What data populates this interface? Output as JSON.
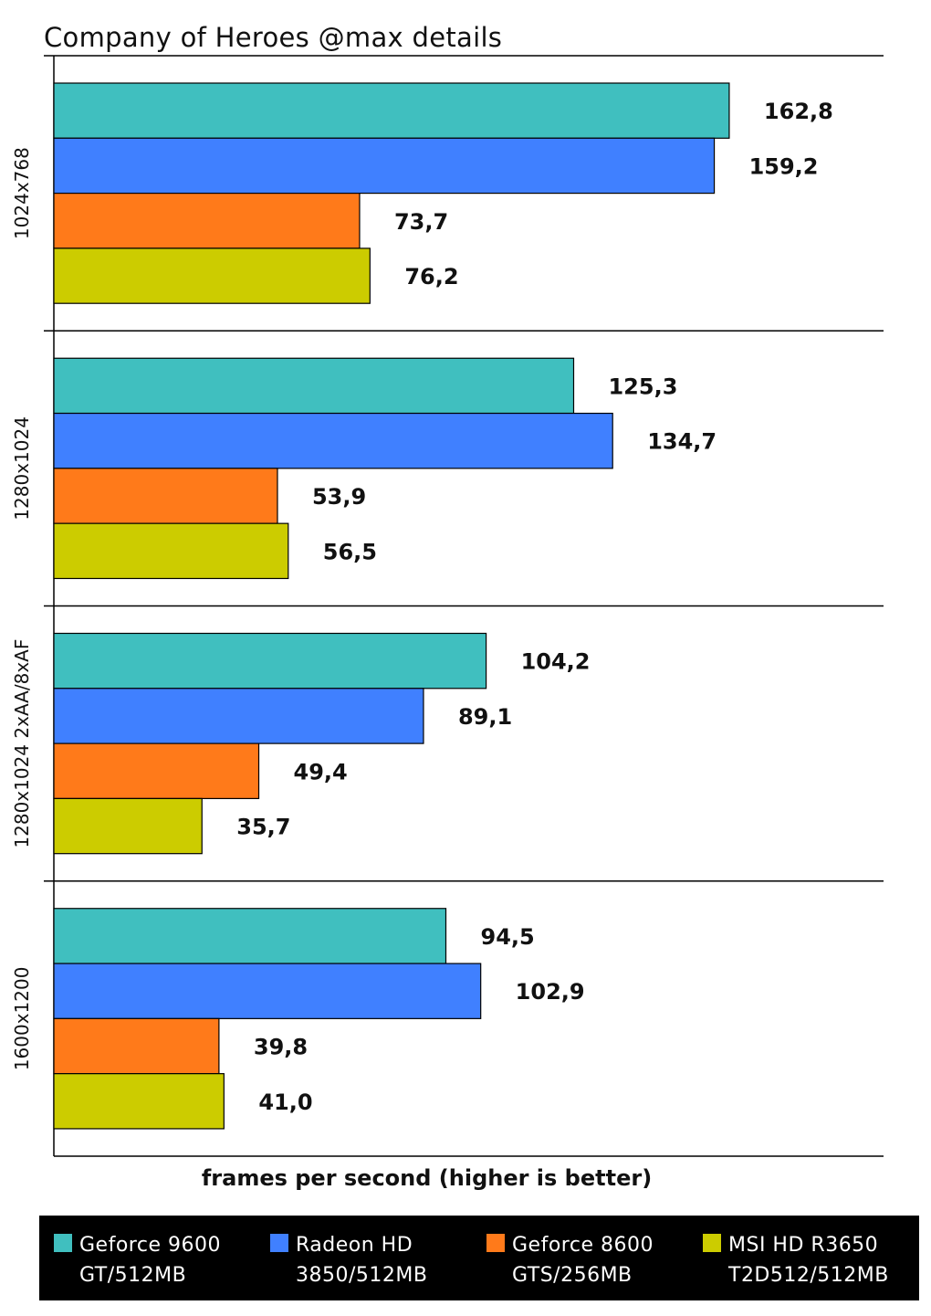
{
  "chart_data": {
    "type": "bar",
    "orientation": "horizontal",
    "title": "Company of Heroes @max details",
    "xlabel": "frames per second (higher is better)",
    "ylabel": "",
    "xlim": [
      0,
      200
    ],
    "grid": false,
    "legend_position": "bottom",
    "categories": [
      "1024x768",
      "1280x1024",
      "1280x1024 2xAA/8xAF",
      "1600x1200"
    ],
    "series": [
      {
        "name": "Geforce 9600 GT/512MB",
        "color": "#40BFBF",
        "values": [
          162.8,
          125.3,
          104.2,
          94.5
        ],
        "labels": [
          "162,8",
          "125,3",
          "104,2",
          "94,5"
        ]
      },
      {
        "name": "Radeon HD 3850/512MB",
        "color": "#4080FF",
        "values": [
          159.2,
          134.7,
          89.1,
          102.9
        ],
        "labels": [
          "159,2",
          "134,7",
          "89,1",
          "102,9"
        ]
      },
      {
        "name": "Geforce 8600 GTS/256MB",
        "color": "#FF7A1A",
        "values": [
          73.7,
          53.9,
          49.4,
          39.8
        ],
        "labels": [
          "73,7",
          "53,9",
          "49,4",
          "39,8"
        ]
      },
      {
        "name": "MSI HD R3650 T2D512/512MB",
        "color": "#CCCC00",
        "values": [
          76.2,
          56.5,
          35.7,
          41.0
        ],
        "labels": [
          "76,2",
          "56,5",
          "35,7",
          "41,0"
        ]
      }
    ]
  },
  "legend": {
    "items": [
      {
        "text": "Geforce 9600\nGT/512MB",
        "color": "#40BFBF"
      },
      {
        "text": "Radeon HD\n3850/512MB",
        "color": "#4080FF"
      },
      {
        "text": "Geforce 8600\nGTS/256MB",
        "color": "#FF7A1A"
      },
      {
        "text": "MSI HD R3650\nT2D512/512MB",
        "color": "#CCCC00"
      }
    ]
  }
}
